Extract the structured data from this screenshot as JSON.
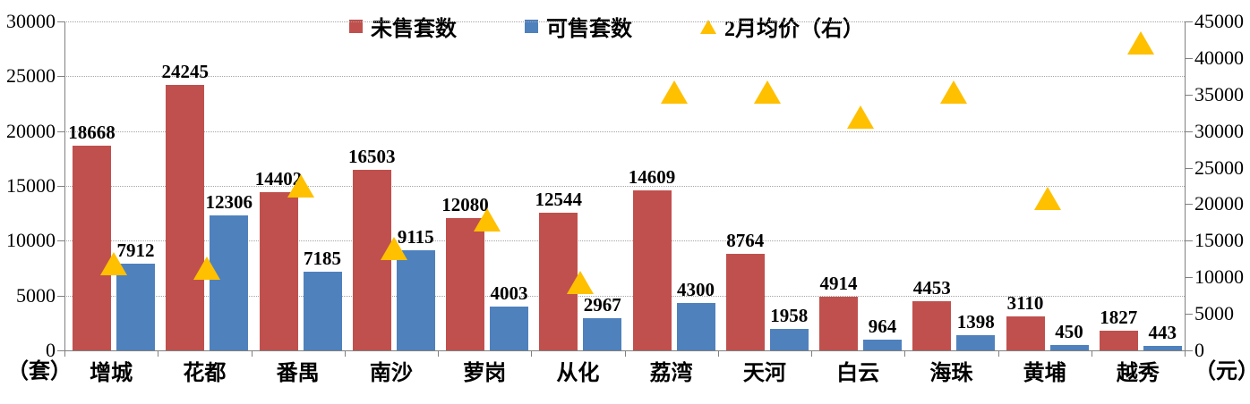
{
  "chart_data": {
    "type": "bar",
    "title": "",
    "categories": [
      "增城",
      "花都",
      "番禺",
      "南沙",
      "萝岗",
      "从化",
      "荔湾",
      "天河",
      "白云",
      "海珠",
      "黄埔",
      "越秀"
    ],
    "series": [
      {
        "name": "未售套数",
        "type": "bar",
        "axis": "left",
        "color": "#C0504D",
        "values": [
          18668,
          24245,
          14402,
          16503,
          12080,
          12544,
          14609,
          8764,
          4914,
          4453,
          3110,
          1827
        ]
      },
      {
        "name": "可售套数",
        "type": "bar",
        "axis": "left",
        "color": "#4F81BD",
        "values": [
          7912,
          12306,
          7185,
          9115,
          4003,
          2967,
          4300,
          1958,
          964,
          1398,
          450,
          443
        ]
      },
      {
        "name": "2月均价（右）",
        "type": "scatter",
        "marker": "triangle",
        "axis": "right",
        "color": "#FFC000",
        "values": [
          11900,
          11300,
          22500,
          13900,
          17900,
          9300,
          35300,
          35300,
          31900,
          35400,
          20800,
          42100
        ]
      }
    ],
    "left_axis": {
      "min": 0,
      "max": 30000,
      "step": 5000,
      "unit": "（套）",
      "ticks": [
        "0",
        "5000",
        "10000",
        "15000",
        "20000",
        "25000",
        "30000"
      ]
    },
    "right_axis": {
      "min": 0,
      "max": 45000,
      "step": 5000,
      "unit": "（元）",
      "ticks": [
        "0",
        "5000",
        "10000",
        "15000",
        "20000",
        "25000",
        "30000",
        "35000",
        "40000",
        "45000"
      ]
    },
    "grid": true,
    "legend_position": "top",
    "colors": {
      "gridline": "#A6A6A6",
      "axis": "#808080",
      "text": "#000000"
    }
  }
}
